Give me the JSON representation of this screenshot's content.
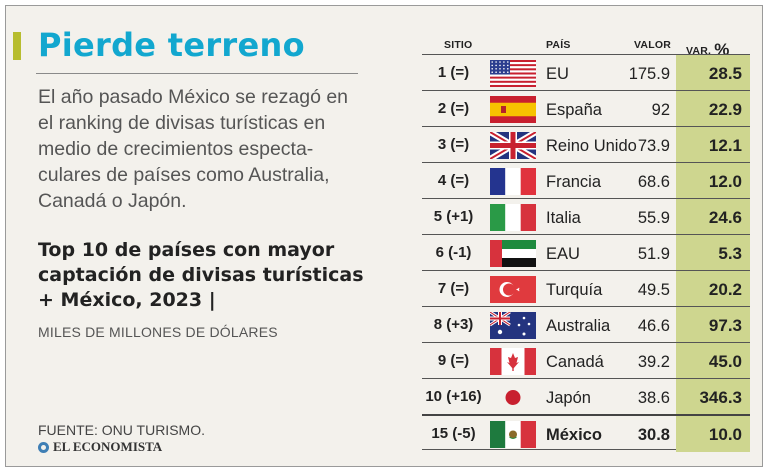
{
  "title": "Pierde terreno",
  "intro": "El año pasado México se rezagó en el ranking de divisas turísticas en medio de crecimientos especta-culares de países como Australia, Canadá o Japón.",
  "subtitle": "Top 10 de países con mayor captación de divisas turísticas + México, 2023 |",
  "units": "MILES DE MILLONES DE DÓLARES",
  "source": "FUENTE: ONU TURISMO.",
  "logo_text": "EL ECONOMISTA",
  "colors": {
    "title": "#12a7cf",
    "accent": "#b7bd2f",
    "var_column": "#ced68f"
  },
  "chart_data": {
    "type": "table",
    "title": "Top 10 de países con mayor captación de divisas turísticas + México, 2023",
    "columns": [
      "SITIO",
      "PAÍS",
      "VALOR",
      "VAR.",
      "%"
    ],
    "rows": [
      {
        "rank": "1 (=)",
        "country": "EU",
        "flag": "us-flag-icon",
        "value": "175.9",
        "var": "28.5"
      },
      {
        "rank": "2 (=)",
        "country": "España",
        "flag": "spain-flag-icon",
        "value": "92",
        "var": "22.9"
      },
      {
        "rank": "3 (=)",
        "country": "Reino Unido",
        "flag": "uk-flag-icon",
        "value": "73.9",
        "var": "12.1"
      },
      {
        "rank": "4 (=)",
        "country": "Francia",
        "flag": "france-flag-icon",
        "value": "68.6",
        "var": "12.0"
      },
      {
        "rank": "5 (+1)",
        "country": "Italia",
        "flag": "italy-flag-icon",
        "value": "55.9",
        "var": "24.6"
      },
      {
        "rank": "6 (-1)",
        "country": "EAU",
        "flag": "uae-flag-icon",
        "value": "51.9",
        "var": "5.3"
      },
      {
        "rank": "7 (=)",
        "country": "Turquía",
        "flag": "turkey-flag-icon",
        "value": "49.5",
        "var": "20.2"
      },
      {
        "rank": "8 (+3)",
        "country": "Australia",
        "flag": "australia-flag-icon",
        "value": "46.6",
        "var": "97.3"
      },
      {
        "rank": "9 (=)",
        "country": "Canadá",
        "flag": "canada-flag-icon",
        "value": "39.2",
        "var": "45.0"
      },
      {
        "rank": "10 (+16)",
        "country": "Japón",
        "flag": "japan-flag-icon",
        "value": "38.6",
        "var": "346.3"
      },
      {
        "rank": "15 (-5)",
        "country": "México",
        "flag": "mexico-flag-icon",
        "value": "30.8",
        "var": "10.0",
        "highlight": true
      }
    ]
  }
}
